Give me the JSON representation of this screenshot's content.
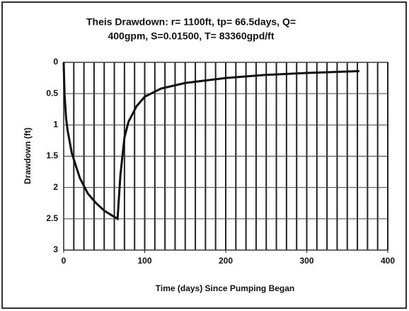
{
  "chart_data": {
    "type": "line",
    "title": [
      "Theis Drawdown: r= 1100ft, tp= 66.5days, Q=",
      "400gpm, S=0.01500, T= 83360gpd/ft"
    ],
    "x_label": "Time (days) Since Pumping Began",
    "y_label": "Drawdown (ft)",
    "x": [
      0,
      1,
      3,
      5,
      10,
      20,
      30,
      40,
      50,
      60,
      66.5,
      70,
      75,
      80,
      90,
      100,
      120,
      150,
      200,
      250,
      300,
      365
    ],
    "series": [
      {
        "name": "Drawdown",
        "color": "#111111",
        "values": [
          0,
          0.5,
          0.9,
          1.1,
          1.45,
          1.85,
          2.1,
          2.25,
          2.37,
          2.45,
          2.5,
          1.8,
          1.2,
          0.95,
          0.7,
          0.55,
          0.42,
          0.33,
          0.25,
          0.2,
          0.17,
          0.14
        ]
      }
    ],
    "xlim": [
      0,
      400
    ],
    "xticks": [
      0,
      100,
      200,
      300,
      400
    ],
    "xgrid": [
      12.5,
      25,
      37.5,
      50,
      62.5,
      75,
      87.5,
      100,
      112.5,
      125,
      137.5,
      150,
      162.5,
      175,
      187.5,
      200,
      212.5,
      225,
      237.5,
      250,
      262.5,
      275,
      287.5,
      300,
      312.5,
      325,
      337.5,
      350,
      362.5,
      375,
      387.5,
      400
    ],
    "ylim": [
      0,
      3
    ],
    "yticks": [
      0,
      0.5,
      1,
      1.5,
      2,
      2.5,
      3
    ],
    "y_inverted": true,
    "grid": true
  }
}
